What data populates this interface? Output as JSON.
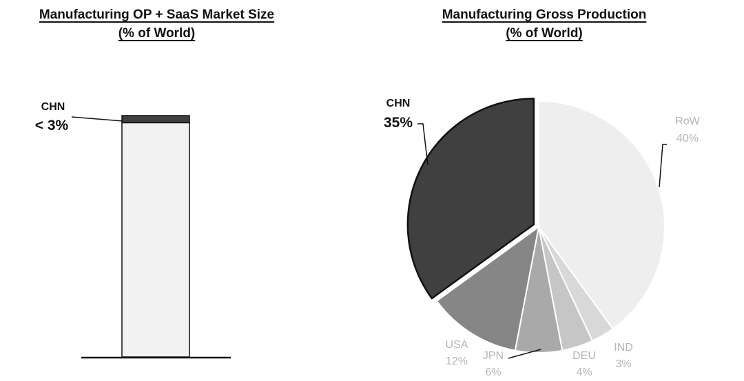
{
  "chart_data": [
    {
      "type": "bar",
      "title": "Manufacturing OP + SaaS Market Size",
      "subtitle": "(% of World)",
      "series": [
        {
          "name": "CHN",
          "value_label": "< 3%",
          "values": [
            3
          ]
        },
        {
          "name": "",
          "values": [
            97
          ]
        }
      ],
      "colors": {
        "CHN": "#404040",
        "rest": "#f2f2f2"
      }
    },
    {
      "type": "pie",
      "title": "Manufacturing Gross Production",
      "subtitle": "(% of World)",
      "slices": [
        {
          "name": "RoW",
          "value": 40,
          "label": "40%",
          "color": "#eeeeee"
        },
        {
          "name": "IND",
          "value": 3,
          "label": "3%",
          "color": "#d8d8d8"
        },
        {
          "name": "DEU",
          "value": 4,
          "label": "4%",
          "color": "#c6c6c6"
        },
        {
          "name": "JPN",
          "value": 6,
          "label": "6%",
          "color": "#a9a9a9"
        },
        {
          "name": "USA",
          "value": 12,
          "label": "12%",
          "color": "#868686"
        },
        {
          "name": "CHN",
          "value": 35,
          "label": "35%",
          "color": "#404040",
          "exploded": true
        }
      ]
    }
  ]
}
